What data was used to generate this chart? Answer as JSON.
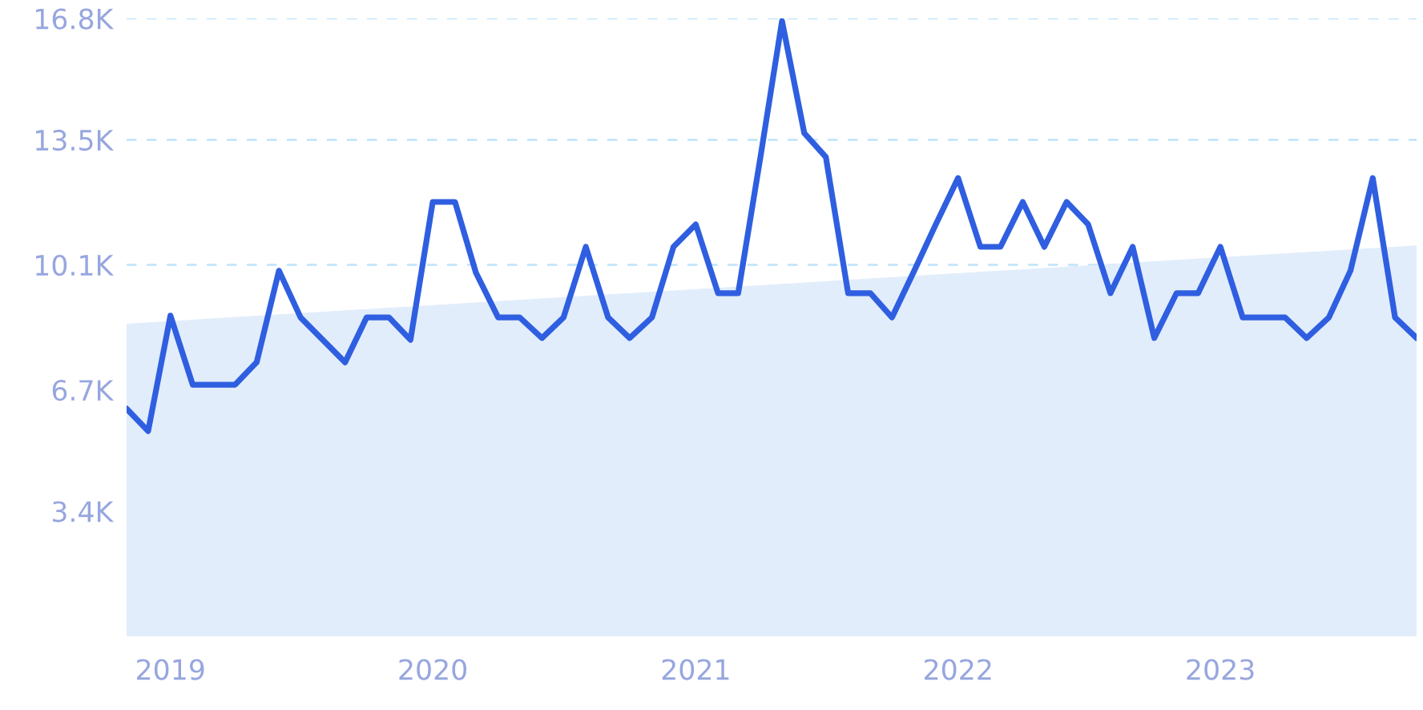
{
  "chart_data": {
    "type": "line",
    "x": [
      "2018-11",
      "2018-12",
      "2019-01",
      "2019-02",
      "2019-03",
      "2019-04",
      "2019-05",
      "2019-06",
      "2019-07",
      "2019-08",
      "2019-09",
      "2019-10",
      "2019-11",
      "2019-12",
      "2020-01",
      "2020-02",
      "2020-03",
      "2020-04",
      "2020-05",
      "2020-06",
      "2020-07",
      "2020-08",
      "2020-09",
      "2020-10",
      "2020-11",
      "2020-12",
      "2021-01",
      "2021-02",
      "2021-03",
      "2021-04",
      "2021-05",
      "2021-06",
      "2021-07",
      "2021-08",
      "2021-09",
      "2021-10",
      "2021-11",
      "2021-12",
      "2022-01",
      "2022-02",
      "2022-03",
      "2022-04",
      "2022-05",
      "2022-06",
      "2022-07",
      "2022-08",
      "2022-09",
      "2022-10",
      "2022-11",
      "2022-12",
      "2023-01",
      "2023-02",
      "2023-03",
      "2023-04",
      "2023-05",
      "2023-06",
      "2023-07",
      "2023-08",
      "2023-09",
      "2023-10"
    ],
    "series": [
      {
        "type": "area",
        "color": "#e2edfc",
        "x": [
          "2018-11",
          "2023-10"
        ],
        "values": [
          8500,
          10630
        ]
      },
      {
        "color": "#2f5fe0",
        "values": [
          6190,
          5580,
          8720,
          6840,
          6840,
          6840,
          7450,
          9940,
          8670,
          8060,
          7450,
          8670,
          8670,
          8060,
          11810,
          11810,
          9890,
          8670,
          8670,
          8110,
          8670,
          10590,
          8670,
          8110,
          8670,
          10590,
          11200,
          9330,
          9330,
          13030,
          16730,
          13680,
          13030,
          9330,
          9330,
          8670,
          9940,
          11200,
          12460,
          10590,
          10590,
          11810,
          10590,
          11810,
          11200,
          9330,
          10590,
          8110,
          9330,
          9330,
          10590,
          8670,
          8670,
          8670,
          8110,
          8670,
          9940,
          12460,
          8670,
          8110
        ]
      }
    ],
    "xlim": [
      "2018-11",
      "2023-10"
    ],
    "xticks": [
      {
        "value": "2019-01",
        "label": "2019"
      },
      {
        "value": "2020-01",
        "label": "2020"
      },
      {
        "value": "2021-01",
        "label": "2021"
      },
      {
        "value": "2022-01",
        "label": "2022"
      },
      {
        "value": "2023-01",
        "label": "2023"
      }
    ],
    "ylim": [
      0,
      16800
    ],
    "yticks": [
      {
        "value": 3400,
        "label": "3.4K"
      },
      {
        "value": 6700,
        "label": "6.7K"
      },
      {
        "value": 10100,
        "label": "10.1K"
      },
      {
        "value": 13500,
        "label": "13.5K"
      },
      {
        "value": 16800,
        "label": "16.8K"
      }
    ],
    "grid": "y",
    "line_style": "solid",
    "marker": "none",
    "legend": false
  }
}
